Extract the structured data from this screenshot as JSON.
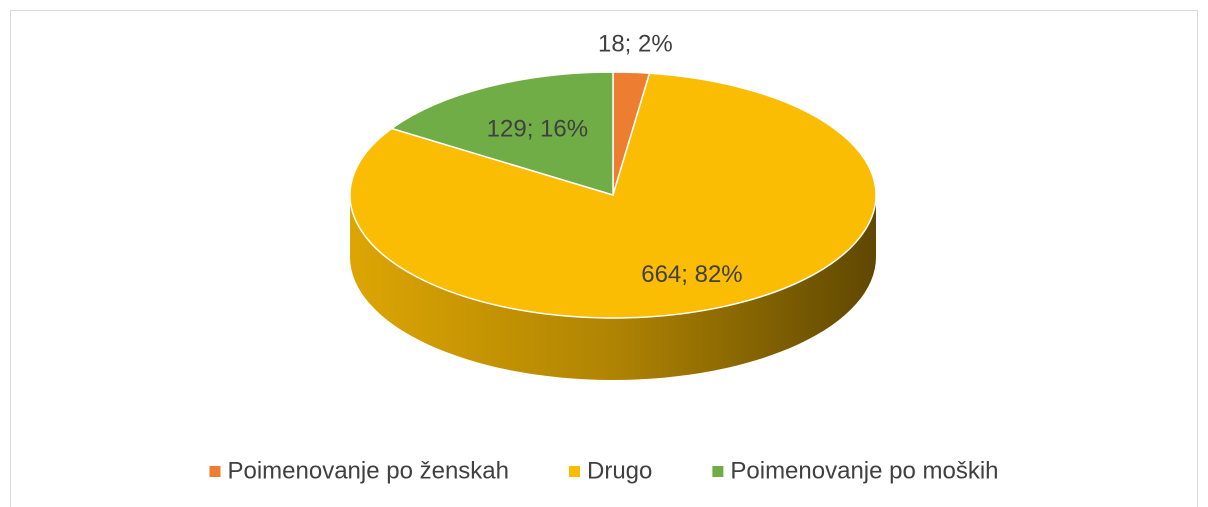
{
  "chart_data": {
    "type": "pie3d",
    "categories": [
      "Poimenovanje po ženskah",
      "Drugo",
      "Poimenovanje po moških"
    ],
    "values": [
      18,
      664,
      129
    ],
    "value_labels": [
      "18; 2%",
      "664; 82%",
      "129; 16%"
    ],
    "colors": [
      "#ed7d31",
      "#fbbc04",
      "#70ad47"
    ],
    "legend": "bottom"
  }
}
